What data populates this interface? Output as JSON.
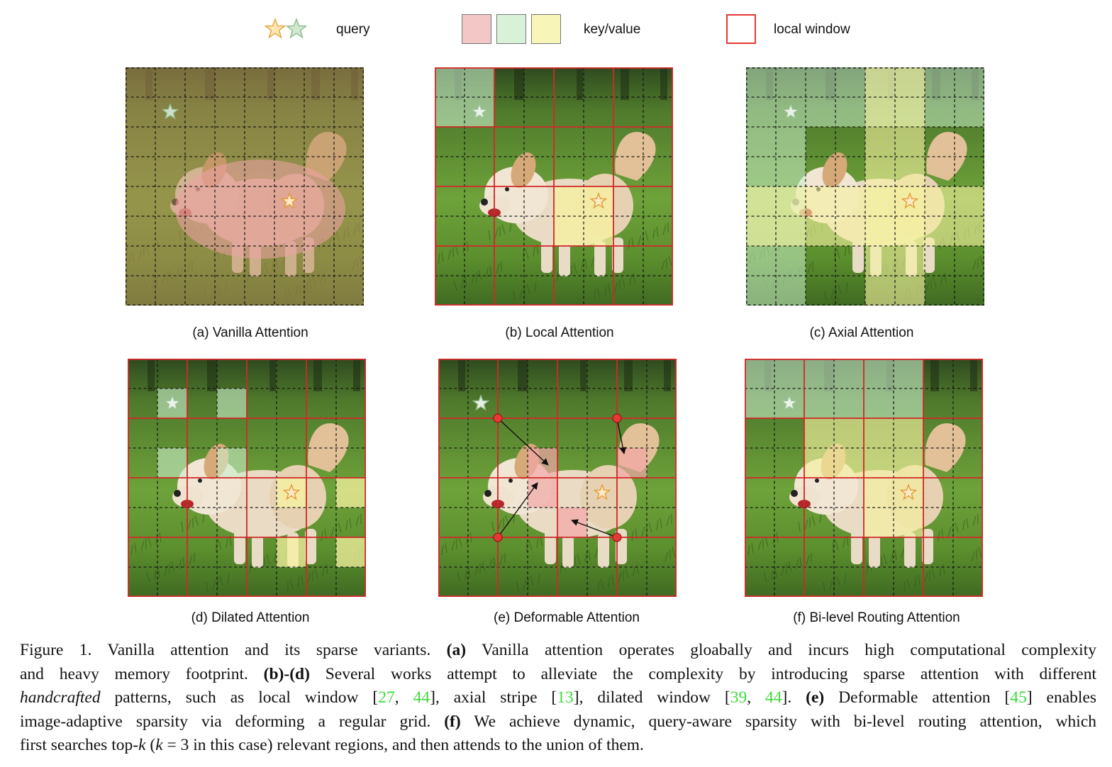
{
  "legend": {
    "query_label": "query",
    "keyvalue_label": "key/value",
    "window_label": "local window",
    "colors": {
      "red_kv": "#f4c7c7",
      "green_kv": "#d8f1d8",
      "yellow_kv": "#f7f5b8",
      "window_border": "#e53935"
    }
  },
  "panels": [
    {
      "id": "a",
      "caption": "(a) Vanilla Attention"
    },
    {
      "id": "b",
      "caption": "(b) Local Attention"
    },
    {
      "id": "c",
      "caption": "(c) Axial Attention"
    },
    {
      "id": "d",
      "caption": "(d) Dilated Attention"
    },
    {
      "id": "e",
      "caption": "(e) Deformable Attention"
    },
    {
      "id": "f",
      "caption": "(f) Bi-level Routing Attention"
    }
  ],
  "caption": {
    "l1_pre": "Figure 1.  Vanilla attention and its sparse variants. ",
    "l1_b": "(a)",
    "l1_post": " Vanilla attention operates gloabally and incurs high computational complexity",
    "l2_pre": "and heavy memory footprint. ",
    "l2_b": "(b)-(d)",
    "l2_post": " Several works attempt to alleviate the complexity by introducing sparse attention with different",
    "l3_i": "handcrafted",
    "l3_a": " patterns, such as local window [",
    "c27": "27",
    "comma": ", ",
    "c44": "44",
    "l3_b": "], axial stripe [",
    "c13": "13",
    "l3_c": "], dilated window [",
    "c39": "39",
    "l3_d": "]. ",
    "l3_e_b": "(e)",
    "l3_e": " Deformable attention [",
    "c45": "45",
    "l3_f": "] enables",
    "l4_pre": "image-adaptive sparsity via deforming a regular grid. ",
    "l4_b": "(f)",
    "l4_post": " We achieve dynamic, query-aware sparsity with bi-level routing attention, which",
    "l5_a": "first searches top-",
    "l5_k": "k",
    "l5_b": " (",
    "l5_k2": "k",
    "l5_c": " = 3 in this case) relevant regions, and then attends to the union of them.",
    "bracket_close": "]"
  }
}
